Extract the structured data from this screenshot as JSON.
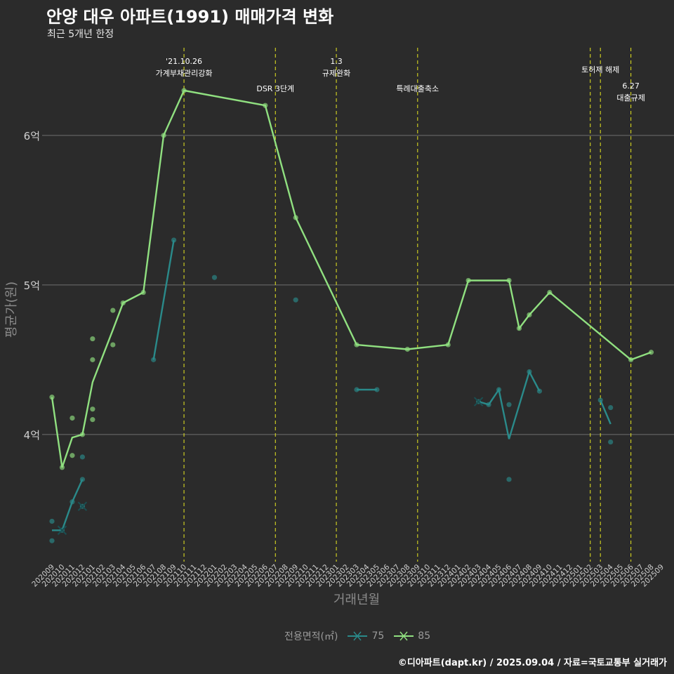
{
  "page": {
    "title": "안양 대우 아파트(1991) 매매가격 변화",
    "subtitle": "최근 5개년 한정",
    "caption": "©디아파트(dapt.kr) / 2025.09.04 / 자료=국토교통부 실거래가"
  },
  "colors": {
    "background": "#2b2b2b",
    "series_75": "#2a8a8a",
    "series_85": "#90e080",
    "policy_line": "#d8d820",
    "grid": "#707070",
    "axis_text": "#cfcfcf"
  },
  "legend": {
    "title": "전용면적(㎡)",
    "items": [
      {
        "label": "75",
        "icon": "cross-line-icon"
      },
      {
        "label": "85",
        "icon": "cross-line-icon"
      }
    ]
  },
  "chart_data": {
    "type": "line",
    "title": "안양 대우 아파트(1991) 매매가격 변화",
    "xlabel": "거래년월",
    "ylabel": "평균가(원)",
    "ylim": [
      3.15,
      6.6
    ],
    "yticks": [
      {
        "value": 4,
        "label": "4억"
      },
      {
        "value": 5,
        "label": "5억"
      },
      {
        "value": 6,
        "label": "6억"
      }
    ],
    "categories": [
      "202009",
      "202010",
      "202011",
      "202012",
      "202101",
      "202102",
      "202103",
      "202104",
      "202105",
      "202106",
      "202107",
      "202108",
      "202109",
      "202110",
      "202111",
      "202112",
      "202201",
      "202202",
      "202203",
      "202204",
      "202205",
      "202206",
      "202207",
      "202208",
      "202209",
      "202210",
      "202211",
      "202212",
      "202301",
      "202302",
      "202303",
      "202304",
      "202305",
      "202306",
      "202307",
      "202308",
      "202309",
      "202310",
      "202311",
      "202312",
      "202401",
      "202402",
      "202403",
      "202404",
      "202405",
      "202406",
      "202407",
      "202408",
      "202409",
      "202410",
      "202411",
      "202412",
      "202501",
      "202502",
      "202503",
      "202504",
      "202505",
      "202506",
      "202507",
      "202508",
      "202509"
    ],
    "series": [
      {
        "name": "75",
        "line_segments": [
          [
            [
              "202009",
              3.36
            ],
            [
              "202010",
              3.36
            ],
            [
              "202011",
              3.55
            ],
            [
              "202012",
              3.7
            ]
          ],
          [
            [
              "202107",
              4.5
            ],
            [
              "202109",
              5.3
            ]
          ],
          [
            [
              "202303",
              4.3
            ],
            [
              "202305",
              4.3
            ]
          ],
          [
            [
              "202403",
              4.22
            ],
            [
              "202404",
              4.2
            ],
            [
              "202405",
              4.3
            ],
            [
              "202406",
              3.97
            ],
            [
              "202408",
              4.42
            ],
            [
              "202409",
              4.29
            ]
          ],
          [
            [
              "202503",
              4.23
            ],
            [
              "202504",
              4.07
            ]
          ]
        ],
        "points": [
          [
            "202009",
            3.42
          ],
          [
            "202009",
            3.29
          ],
          [
            "202010",
            3.36
          ],
          [
            "202011",
            3.55
          ],
          [
            "202012",
            3.85
          ],
          [
            "202012",
            3.52
          ],
          [
            "202012",
            3.7
          ],
          [
            "202107",
            4.5
          ],
          [
            "202109",
            5.3
          ],
          [
            "202201",
            5.05
          ],
          [
            "202209",
            4.9
          ],
          [
            "202303",
            4.3
          ],
          [
            "202305",
            4.3
          ],
          [
            "202403",
            4.22
          ],
          [
            "202404",
            4.2
          ],
          [
            "202405",
            4.3
          ],
          [
            "202406",
            4.2
          ],
          [
            "202406",
            3.7
          ],
          [
            "202408",
            4.42
          ],
          [
            "202409",
            4.29
          ],
          [
            "202503",
            4.23
          ],
          [
            "202504",
            4.18
          ],
          [
            "202504",
            3.95
          ]
        ],
        "cross_markers": [
          [
            "202010",
            3.36
          ],
          [
            "202012",
            3.52
          ],
          [
            "202403",
            4.22
          ]
        ]
      },
      {
        "name": "85",
        "line_segments": [
          [
            [
              "202009",
              4.25
            ],
            [
              "202010",
              3.78
            ],
            [
              "202011",
              3.98
            ],
            [
              "202012",
              4.0
            ],
            [
              "202101",
              4.35
            ],
            [
              "202103",
              4.7
            ],
            [
              "202104",
              4.88
            ],
            [
              "202106",
              4.95
            ],
            [
              "202108",
              6.0
            ],
            [
              "202110",
              6.3
            ],
            [
              "202206",
              6.2
            ],
            [
              "202209",
              5.45
            ],
            [
              "202303",
              4.6
            ],
            [
              "202308",
              4.57
            ],
            [
              "202312",
              4.6
            ],
            [
              "202402",
              5.03
            ],
            [
              "202406",
              5.03
            ],
            [
              "202407",
              4.71
            ],
            [
              "202408",
              4.8
            ],
            [
              "202410",
              4.95
            ],
            [
              "202506",
              4.5
            ],
            [
              "202508",
              4.55
            ]
          ]
        ],
        "points": [
          [
            "202009",
            4.25
          ],
          [
            "202010",
            3.78
          ],
          [
            "202011",
            4.11
          ],
          [
            "202011",
            3.86
          ],
          [
            "202012",
            4.0
          ],
          [
            "202101",
            4.64
          ],
          [
            "202101",
            4.5
          ],
          [
            "202101",
            4.17
          ],
          [
            "202101",
            4.1
          ],
          [
            "202103",
            4.83
          ],
          [
            "202103",
            4.6
          ],
          [
            "202104",
            4.88
          ],
          [
            "202106",
            4.95
          ],
          [
            "202108",
            6.0
          ],
          [
            "202110",
            6.3
          ],
          [
            "202206",
            6.2
          ],
          [
            "202209",
            5.45
          ],
          [
            "202303",
            4.6
          ],
          [
            "202308",
            4.57
          ],
          [
            "202312",
            4.6
          ],
          [
            "202402",
            5.03
          ],
          [
            "202406",
            5.03
          ],
          [
            "202407",
            4.71
          ],
          [
            "202408",
            4.8
          ],
          [
            "202410",
            4.95
          ],
          [
            "202506",
            4.5
          ],
          [
            "202508",
            4.55
          ]
        ],
        "cross_markers": []
      }
    ],
    "policy_lines": [
      {
        "x": "202110",
        "label": [
          "'21.10.26",
          "가계부채관리강화"
        ],
        "label_level": 0
      },
      {
        "x": "202207",
        "label": [
          "DSR 3단계"
        ],
        "label_level": 1
      },
      {
        "x": "202301",
        "label": [
          "1.3",
          "규제완화"
        ],
        "label_level": 0
      },
      {
        "x": "202309",
        "label": [
          "특례대출축소"
        ],
        "label_level": 1
      },
      {
        "x": "202502",
        "label": [],
        "label_level": 0
      },
      {
        "x": "202503",
        "label": [
          "토허제 해제"
        ],
        "label_level": 0
      },
      {
        "x": "202506",
        "label": [
          "6.27",
          "대출규제"
        ],
        "label_level": 1
      }
    ]
  }
}
